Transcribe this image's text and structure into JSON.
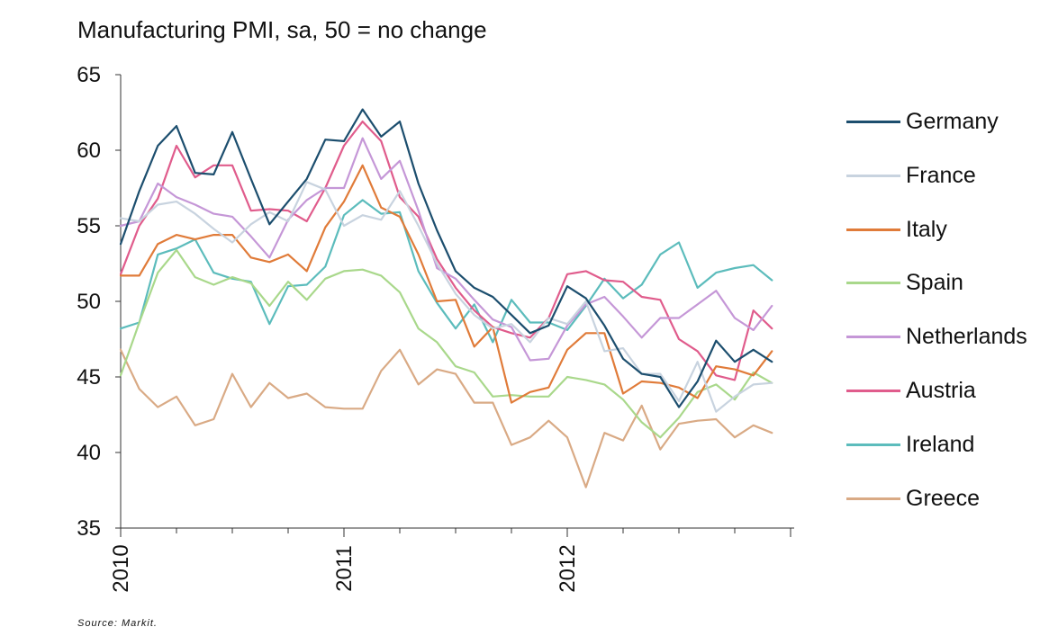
{
  "chart_data": {
    "type": "line",
    "title": "Manufacturing PMI, sa, 50 = no change",
    "source": "Source: Markit.",
    "ylim": [
      35,
      65
    ],
    "yticks": [
      35,
      40,
      45,
      50,
      55,
      60,
      65
    ],
    "xticks": [
      "2010",
      "2011",
      "2012"
    ],
    "x_start": "2010-01",
    "x_end": "2012-12",
    "legend_position": "right",
    "grid": false,
    "series": [
      {
        "name": "Germany",
        "color": "#1c4e6e",
        "values": [
          53.8,
          57.3,
          60.3,
          61.6,
          58.5,
          58.4,
          61.2,
          58.1,
          55.1,
          56.6,
          58.1,
          60.7,
          60.6,
          62.7,
          60.9,
          61.9,
          57.8,
          54.7,
          52.0,
          50.9,
          50.3,
          49.1,
          47.9,
          48.4,
          51.0,
          50.2,
          48.4,
          46.2,
          45.2,
          45.0,
          43.0,
          44.7,
          47.4,
          46.0,
          46.8,
          46.0
        ]
      },
      {
        "name": "France",
        "color": "#c8d3df",
        "values": [
          55.5,
          55.3,
          56.4,
          56.6,
          55.8,
          54.8,
          53.9,
          55.1,
          55.9,
          55.3,
          57.9,
          57.4,
          55.0,
          55.7,
          55.4,
          57.3,
          55.0,
          52.5,
          50.5,
          49.1,
          48.2,
          48.5,
          47.3,
          48.9,
          48.5,
          50.0,
          46.7,
          46.9,
          45.2,
          45.2,
          43.4,
          46.0,
          42.7,
          43.7,
          44.5,
          44.6
        ]
      },
      {
        "name": "Italy",
        "color": "#e07b39",
        "values": [
          51.7,
          51.7,
          53.8,
          54.4,
          54.1,
          54.4,
          54.4,
          52.9,
          52.6,
          53.1,
          52.0,
          54.9,
          56.6,
          59.0,
          56.2,
          55.6,
          53.1,
          50.0,
          50.1,
          47.0,
          48.3,
          43.3,
          44.0,
          44.3,
          46.8,
          47.9,
          47.9,
          43.9,
          44.7,
          44.6,
          44.3,
          43.6,
          45.7,
          45.5,
          45.1,
          46.7
        ]
      },
      {
        "name": "Spain",
        "color": "#a9d88b",
        "values": [
          45.1,
          48.6,
          51.9,
          53.4,
          51.6,
          51.1,
          51.6,
          51.2,
          49.7,
          51.3,
          50.1,
          51.5,
          52.0,
          52.1,
          51.7,
          50.6,
          48.2,
          47.3,
          45.7,
          45.3,
          43.7,
          43.8,
          43.7,
          43.7,
          45.0,
          44.8,
          44.5,
          43.5,
          42.0,
          41.0,
          42.3,
          44.0,
          44.5,
          43.5,
          45.3,
          44.6
        ]
      },
      {
        "name": "Netherlands",
        "color": "#c597d7",
        "values": [
          55.0,
          55.3,
          57.8,
          56.9,
          56.4,
          55.8,
          55.6,
          54.3,
          52.9,
          55.4,
          56.7,
          57.5,
          57.5,
          60.8,
          58.1,
          59.3,
          56.0,
          52.2,
          51.5,
          50.1,
          48.8,
          48.3,
          46.1,
          46.2,
          48.4,
          49.8,
          50.3,
          49.0,
          47.6,
          48.9,
          48.9,
          49.8,
          50.7,
          48.9,
          48.1,
          49.7
        ]
      },
      {
        "name": "Austria",
        "color": "#e05c8c",
        "values": [
          51.8,
          55.0,
          56.8,
          60.3,
          58.2,
          59.0,
          59.0,
          56.0,
          56.1,
          56.0,
          55.3,
          57.5,
          60.3,
          61.9,
          60.6,
          56.9,
          55.6,
          52.8,
          50.9,
          49.4,
          48.3,
          47.9,
          47.6,
          48.9,
          51.8,
          52.0,
          51.4,
          51.3,
          50.3,
          50.1,
          47.5,
          46.7,
          45.1,
          44.8,
          49.4,
          48.2
        ]
      },
      {
        "name": "Ireland",
        "color": "#5cbcbc",
        "values": [
          48.2,
          48.6,
          53.1,
          53.5,
          54.1,
          51.9,
          51.5,
          51.3,
          48.5,
          51.0,
          51.1,
          52.3,
          55.7,
          56.7,
          55.8,
          55.9,
          52.0,
          49.9,
          48.2,
          49.8,
          47.3,
          50.1,
          48.6,
          48.6,
          48.1,
          49.7,
          51.5,
          50.2,
          51.1,
          53.1,
          53.9,
          50.9,
          51.9,
          52.2,
          52.4,
          51.4
        ]
      },
      {
        "name": "Greece",
        "color": "#d9aa85",
        "values": [
          46.8,
          44.2,
          43.0,
          43.7,
          41.8,
          42.2,
          45.2,
          43.0,
          44.6,
          43.6,
          43.9,
          43.0,
          42.9,
          42.9,
          45.4,
          46.8,
          44.5,
          45.5,
          45.2,
          43.3,
          43.3,
          40.5,
          41.0,
          42.1,
          41.0,
          37.7,
          41.3,
          40.8,
          43.1,
          40.2,
          41.9,
          42.1,
          42.2,
          41.0,
          41.8,
          41.3
        ]
      }
    ]
  }
}
